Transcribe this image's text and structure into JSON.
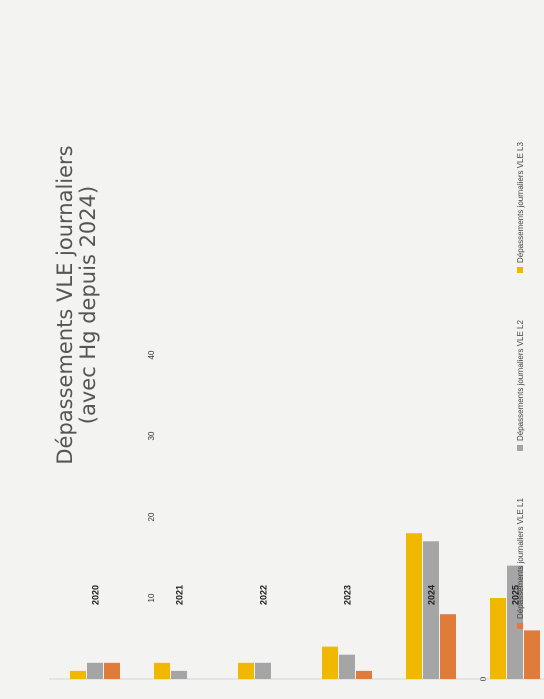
{
  "chart_data": {
    "type": "bar",
    "orientation": "horizontal",
    "title": "Dépassements VLE journaliers",
    "subtitle": "(avec Hg depuis 2024)",
    "categories": [
      "2020",
      "2021",
      "2022",
      "2023",
      "2024",
      "2025"
    ],
    "series": [
      {
        "name": "Dépassements journaliers VLE L1",
        "color": "#e07b39",
        "values": [
          2,
          0,
          0,
          1,
          8,
          6
        ]
      },
      {
        "name": "Dépassements journaliers VLE L2",
        "color": "#a5a5a5",
        "values": [
          2,
          1,
          2,
          3,
          17,
          14
        ]
      },
      {
        "name": "Dépassements journaliers VLE L3",
        "color": "#f2b800",
        "values": [
          1,
          2,
          2,
          4,
          18,
          10
        ]
      }
    ],
    "xlim": [
      0,
      40
    ],
    "ticks": [
      "0",
      "10",
      "20",
      "30",
      "40"
    ],
    "grid": false,
    "legend_position": "bottom"
  }
}
